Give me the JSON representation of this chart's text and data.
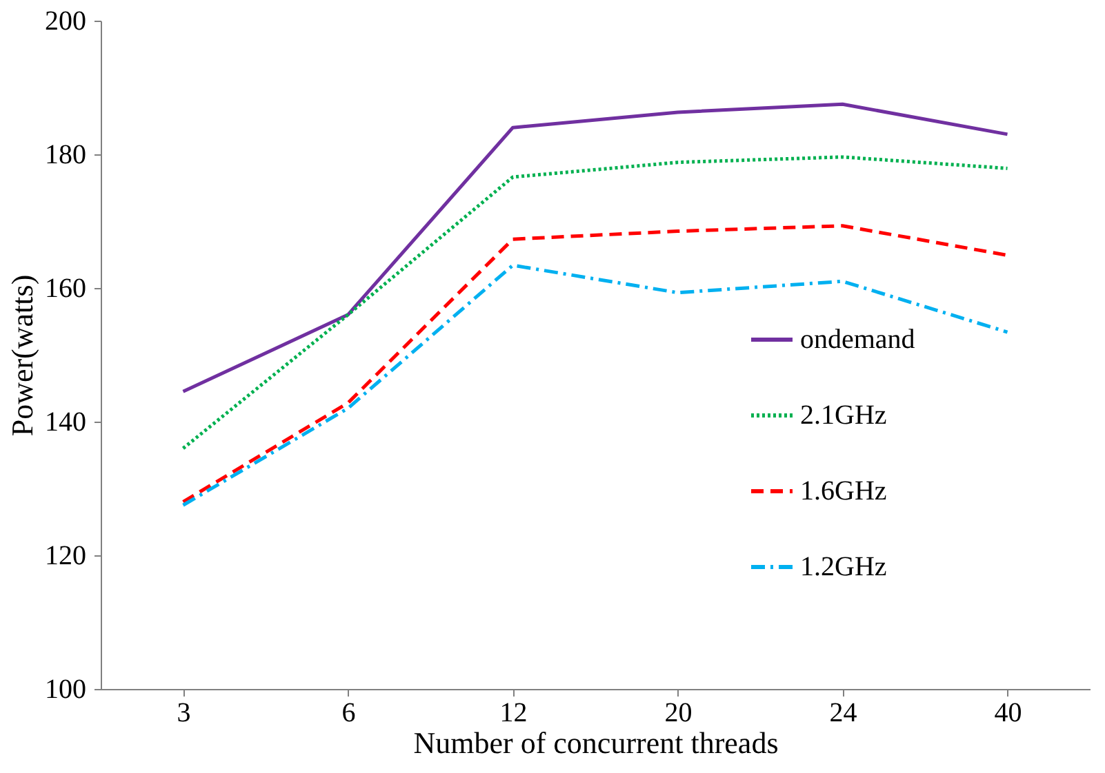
{
  "chart_data": {
    "type": "line",
    "xlabel": "Number of concurrent threads",
    "ylabel": "Power(watts)",
    "categories": [
      "3",
      "6",
      "12",
      "20",
      "24",
      "40"
    ],
    "ylim": [
      100,
      200
    ],
    "yticks": [
      100,
      120,
      140,
      160,
      180,
      200
    ],
    "grid": false,
    "legend": "right",
    "marker": "none",
    "series": [
      {
        "name": "ondemand",
        "color": "#7030a0",
        "line_style": "solid",
        "values": [
          144.5,
          156,
          184,
          186.3,
          187.5,
          183
        ]
      },
      {
        "name": "2.1GHz",
        "color": "#00b050",
        "line_style": "dotted",
        "values": [
          136,
          156,
          176.6,
          178.8,
          179.6,
          177.9
        ]
      },
      {
        "name": "1.6GHz",
        "color": "#ff0000",
        "line_style": "dashed",
        "values": [
          128,
          142.8,
          167.3,
          168.5,
          169.3,
          164.9
        ]
      },
      {
        "name": "1.2GHz",
        "color": "#00b0f0",
        "line_style": "dashdot",
        "values": [
          127.5,
          142,
          163.4,
          159.3,
          161,
          153.4
        ]
      }
    ]
  }
}
